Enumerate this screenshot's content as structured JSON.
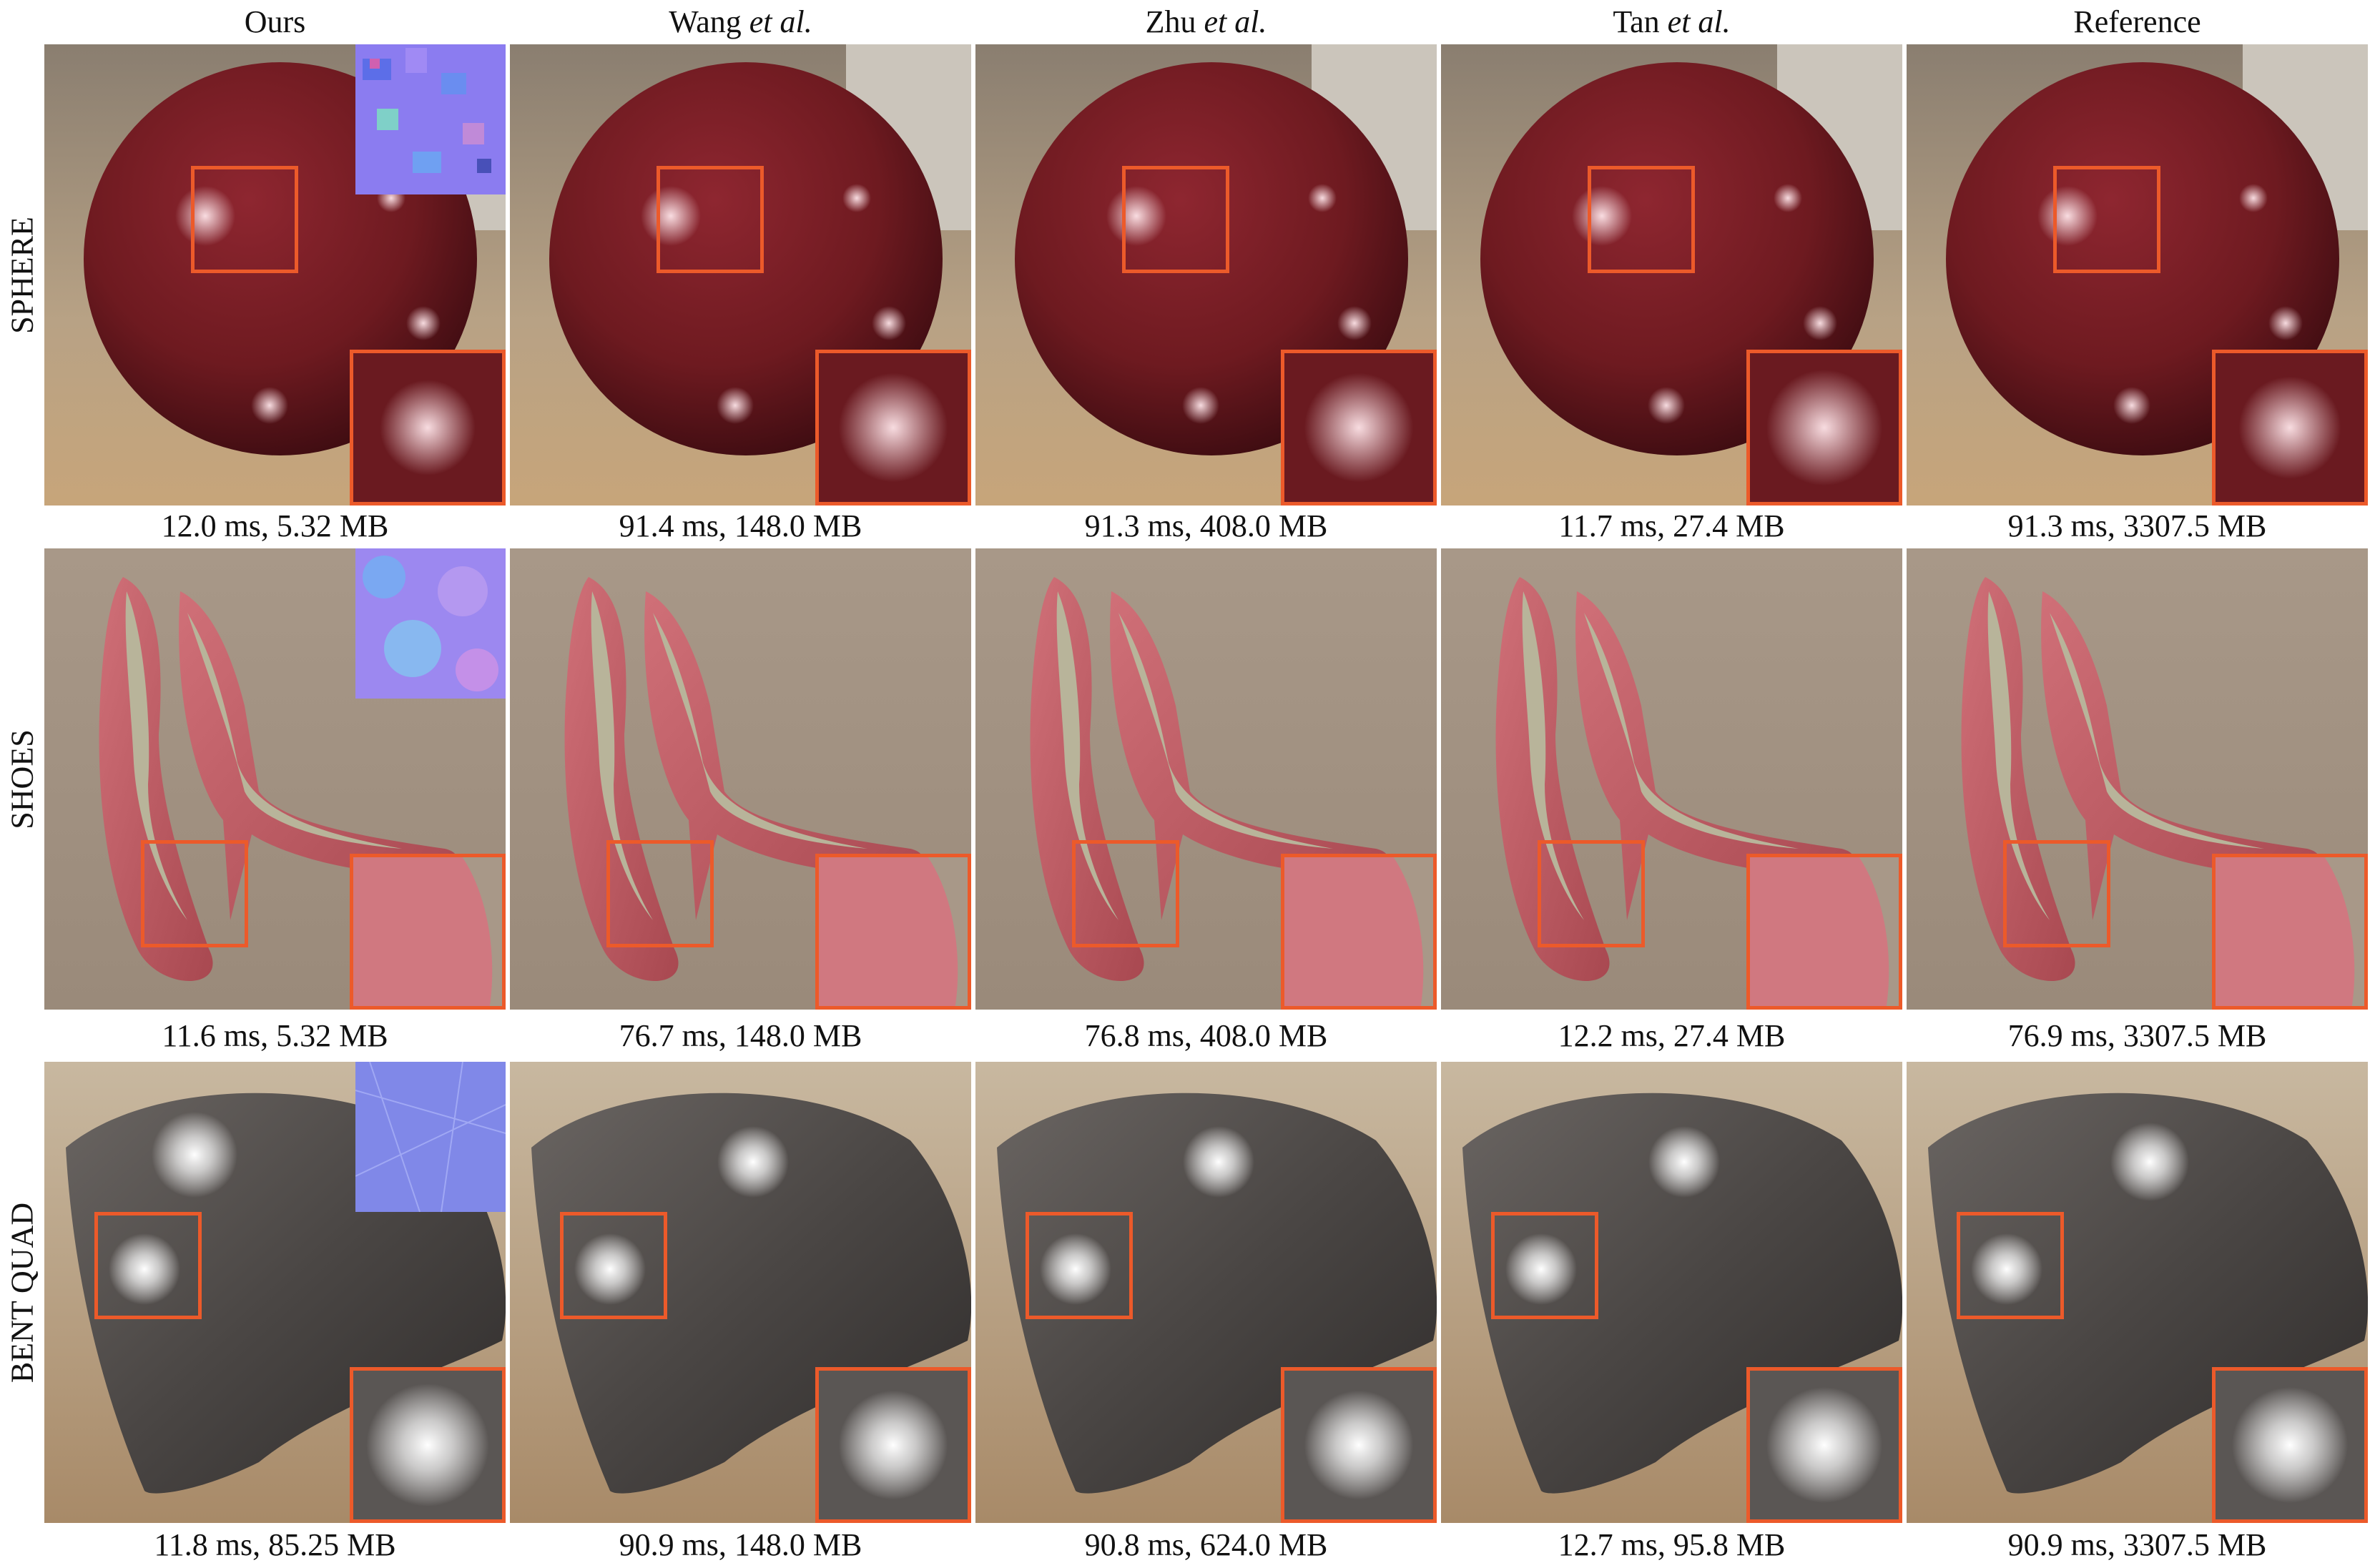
{
  "columns": [
    {
      "label": "Ours",
      "suffix": ""
    },
    {
      "label": "Wang ",
      "suffix": "et al."
    },
    {
      "label": "Zhu ",
      "suffix": "et al."
    },
    {
      "label": "Tan ",
      "suffix": "et al."
    },
    {
      "label": "Reference",
      "suffix": ""
    }
  ],
  "rows": [
    {
      "label": "SPHERE",
      "captions": [
        "12.0 ms, 5.32 MB",
        "91.4 ms, 148.0 MB",
        "91.3 ms, 408.0 MB",
        "11.7 ms, 27.4 MB",
        "91.3 ms, 3307.5 MB"
      ]
    },
    {
      "label": "SHOES",
      "captions": [
        "11.6 ms, 5.32 MB",
        "76.7 ms, 148.0 MB",
        "76.8 ms, 408.0 MB",
        "12.2 ms, 27.4 MB",
        "76.9 ms, 3307.5 MB"
      ]
    },
    {
      "label": "BENT QUAD",
      "captions": [
        "11.8 ms, 85.25 MB",
        "90.9 ms, 148.0 MB",
        "90.8 ms, 624.0 MB",
        "12.7 ms, 95.8 MB",
        "90.9 ms, 3307.5 MB"
      ]
    }
  ],
  "colors": {
    "highlight_box": "#ec5a2a",
    "sphere": "#6e1a20",
    "shoe": "#c8606a",
    "quad": "#4a4644"
  }
}
